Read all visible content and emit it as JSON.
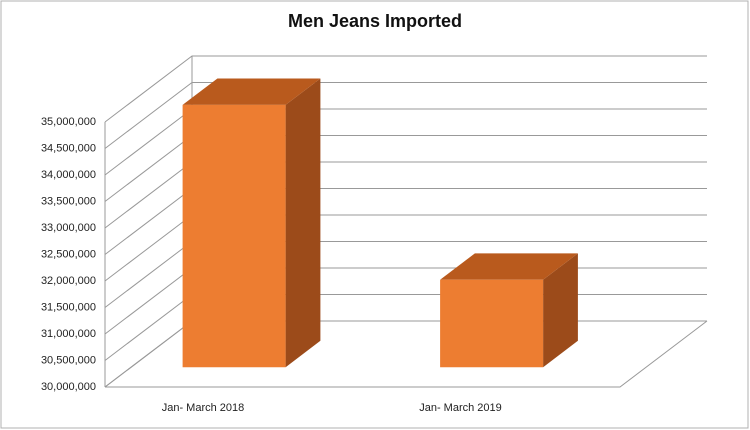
{
  "chart_data": {
    "type": "bar3d",
    "title": "Men Jeans Imported",
    "categories": [
      "Jan- March 2018",
      "Jan- March 2019"
    ],
    "values": [
      34950000,
      31650000
    ],
    "color": "#ed7d31",
    "ylim": [
      30000000,
      35000000
    ],
    "yticks": [
      {
        "value": 30000000,
        "label": "30,000,000"
      },
      {
        "value": 30500000,
        "label": "30,500,000"
      },
      {
        "value": 31000000,
        "label": "31,000,000"
      },
      {
        "value": 31500000,
        "label": "31,500,000"
      },
      {
        "value": 32000000,
        "label": "32,000,000"
      },
      {
        "value": 32500000,
        "label": "32,500,000"
      },
      {
        "value": 33000000,
        "label": "33,000,000"
      },
      {
        "value": 33500000,
        "label": "33,500,000"
      },
      {
        "value": 34000000,
        "label": "34,000,000"
      },
      {
        "value": 34500000,
        "label": "34,500,000"
      },
      {
        "value": 35000000,
        "label": "35,000,000"
      }
    ],
    "grid": true
  }
}
